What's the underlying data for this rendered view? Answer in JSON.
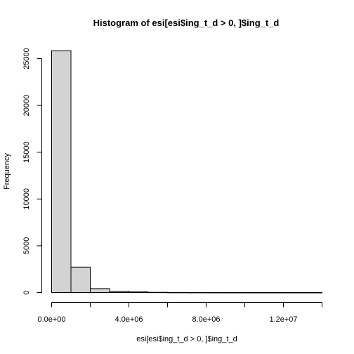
{
  "chart_data": {
    "type": "bar",
    "subtype": "histogram",
    "title": "Histogram of esi[esi$ing_t_d > 0, ]$ing_t_d",
    "xlabel": "esi[esi$ing_t_d > 0, ]$ing_t_d",
    "ylabel": "Frequency",
    "bin_width": 1000000,
    "bins": [
      {
        "start": 0,
        "end": 1000000,
        "count": 25850
      },
      {
        "start": 1000000,
        "end": 2000000,
        "count": 2720
      },
      {
        "start": 2000000,
        "end": 3000000,
        "count": 420
      },
      {
        "start": 3000000,
        "end": 4000000,
        "count": 150
      },
      {
        "start": 4000000,
        "end": 5000000,
        "count": 70
      },
      {
        "start": 5000000,
        "end": 6000000,
        "count": 25
      },
      {
        "start": 6000000,
        "end": 7000000,
        "count": 12
      },
      {
        "start": 7000000,
        "end": 8000000,
        "count": 6
      },
      {
        "start": 8000000,
        "end": 9000000,
        "count": 3
      },
      {
        "start": 9000000,
        "end": 10000000,
        "count": 2
      },
      {
        "start": 10000000,
        "end": 11000000,
        "count": 1
      },
      {
        "start": 11000000,
        "end": 12000000,
        "count": 1
      },
      {
        "start": 12000000,
        "end": 13000000,
        "count": 1
      },
      {
        "start": 13000000,
        "end": 14000000,
        "count": 1
      }
    ],
    "xlim": [
      0,
      14000000
    ],
    "ylim": [
      0,
      26000
    ],
    "x_ticks": [
      0,
      2000000,
      4000000,
      6000000,
      8000000,
      10000000,
      12000000,
      14000000
    ],
    "x_tick_labels": [
      "0.0e+00",
      "",
      "4.0e+06",
      "",
      "8.0e+06",
      "",
      "1.2e+07",
      ""
    ],
    "y_ticks": [
      0,
      5000,
      10000,
      15000,
      20000,
      25000
    ],
    "y_tick_labels": [
      "0",
      "5000",
      "10000",
      "15000",
      "20000",
      "25000"
    ],
    "bar_fill": "#d3d3d3",
    "bar_stroke": "#000000",
    "grid": false
  }
}
